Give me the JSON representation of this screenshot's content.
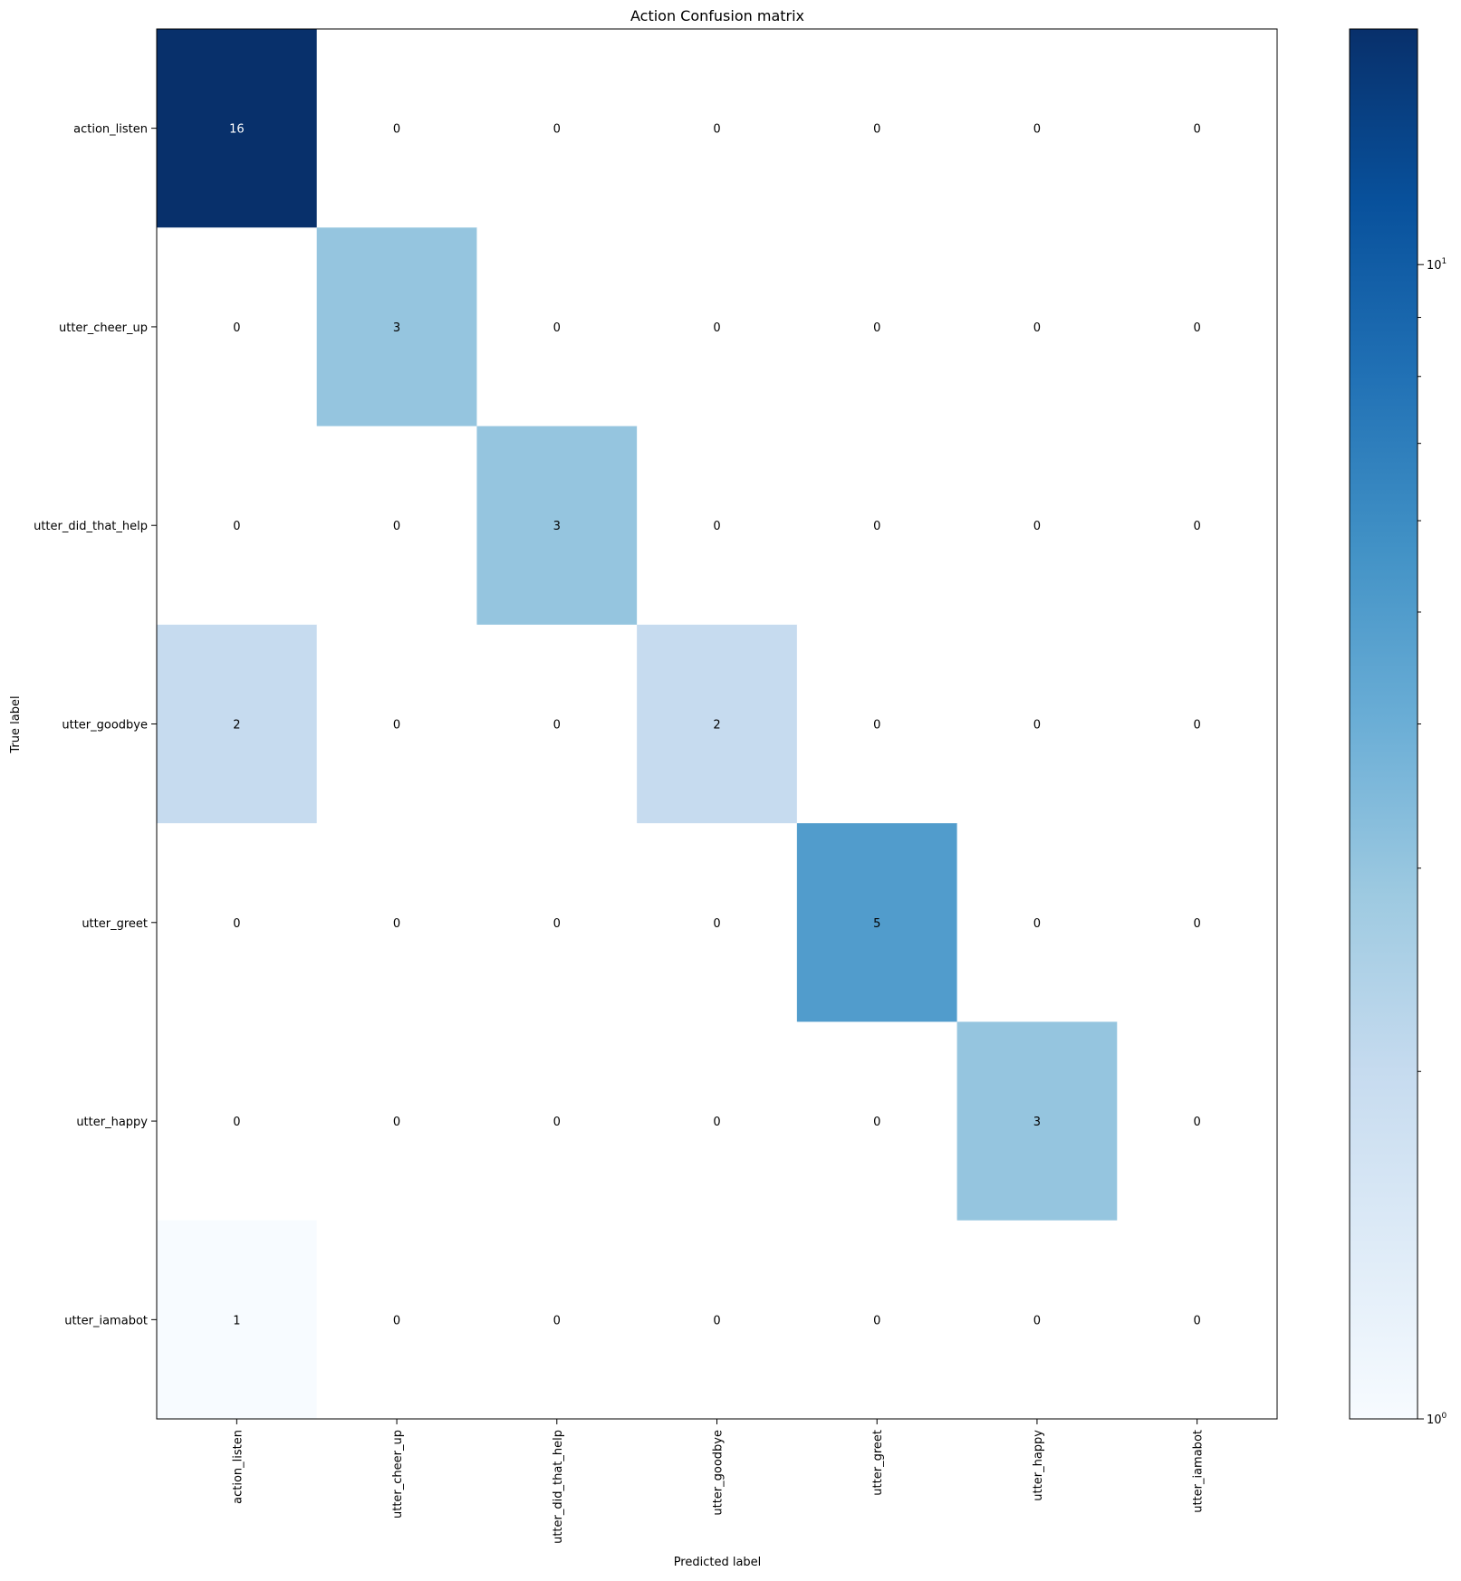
{
  "chart_data": {
    "type": "heatmap",
    "title": "Action Confusion matrix",
    "xlabel": "Predicted label",
    "ylabel": "True label",
    "x_categories": [
      "action_listen",
      "utter_cheer_up",
      "utter_did_that_help",
      "utter_goodbye",
      "utter_greet",
      "utter_happy",
      "utter_iamabot"
    ],
    "y_categories": [
      "action_listen",
      "utter_cheer_up",
      "utter_did_that_help",
      "utter_goodbye",
      "utter_greet",
      "utter_happy",
      "utter_iamabot"
    ],
    "matrix": [
      [
        16,
        0,
        0,
        0,
        0,
        0,
        0
      ],
      [
        0,
        3,
        0,
        0,
        0,
        0,
        0
      ],
      [
        0,
        0,
        3,
        0,
        0,
        0,
        0
      ],
      [
        2,
        0,
        0,
        2,
        0,
        0,
        0
      ],
      [
        0,
        0,
        0,
        0,
        5,
        0,
        0
      ],
      [
        0,
        0,
        0,
        0,
        0,
        3,
        0
      ],
      [
        1,
        0,
        0,
        0,
        0,
        0,
        0
      ]
    ],
    "colormap": "Blues",
    "color_scale": "log",
    "colorbar": {
      "range": [
        1,
        16
      ],
      "major_ticks": [
        {
          "value": 1,
          "label": "10^0"
        },
        {
          "value": 10,
          "label": "10^1"
        }
      ],
      "minor_ticks": [
        2,
        3,
        4,
        5,
        6,
        7,
        8,
        9
      ]
    },
    "zero_color": "#ffffff",
    "text_color_dark": "#000000",
    "text_color_light": "#ffffff"
  }
}
